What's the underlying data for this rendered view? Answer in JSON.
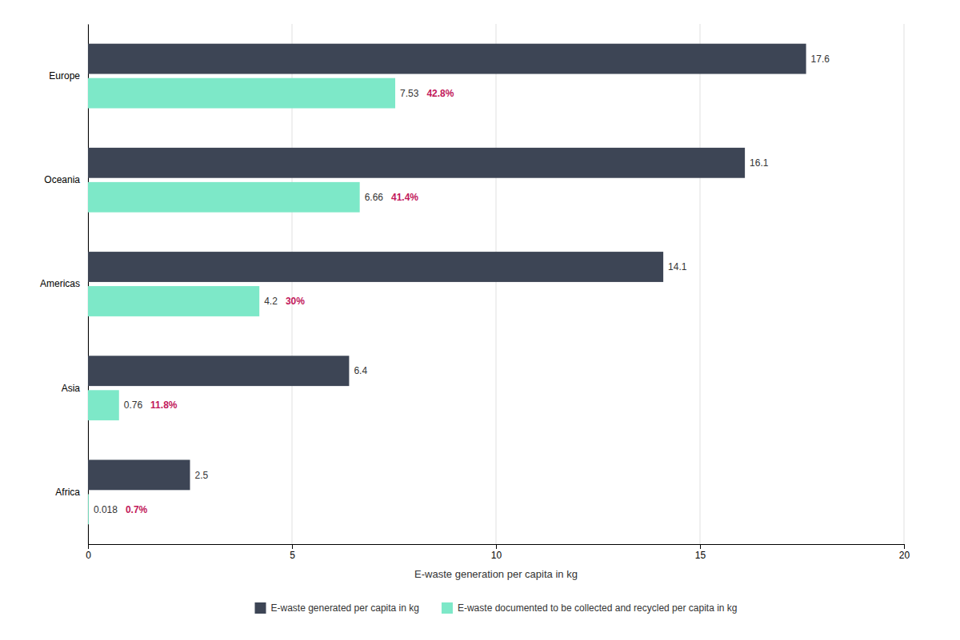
{
  "chart_data": {
    "type": "bar",
    "orientation": "horizontal",
    "categories": [
      "Europe",
      "Oceania",
      "Americas",
      "Asia",
      "Africa"
    ],
    "series": [
      {
        "name": "E-waste generated per capita in kg",
        "color": "#3d4555",
        "values": [
          17.6,
          16.1,
          14.1,
          6.4,
          2.5
        ]
      },
      {
        "name": "E-waste documented to be collected and recycled per capita in kg",
        "color": "#7de8c8",
        "values": [
          7.53,
          6.66,
          4.2,
          0.76,
          0.018
        ],
        "percent": [
          42.8,
          41.4,
          30,
          11.8,
          0.7
        ],
        "percent_labels": [
          "42.8%",
          "41.4%",
          "30%",
          "11.8%",
          "0.7%"
        ]
      }
    ],
    "xlabel": "E-waste generation per capita in kg",
    "xlim": [
      0,
      20
    ],
    "xticks": [
      0,
      5,
      10,
      15,
      20
    ],
    "grid": true,
    "legend": "bottom",
    "data_labels": true
  }
}
